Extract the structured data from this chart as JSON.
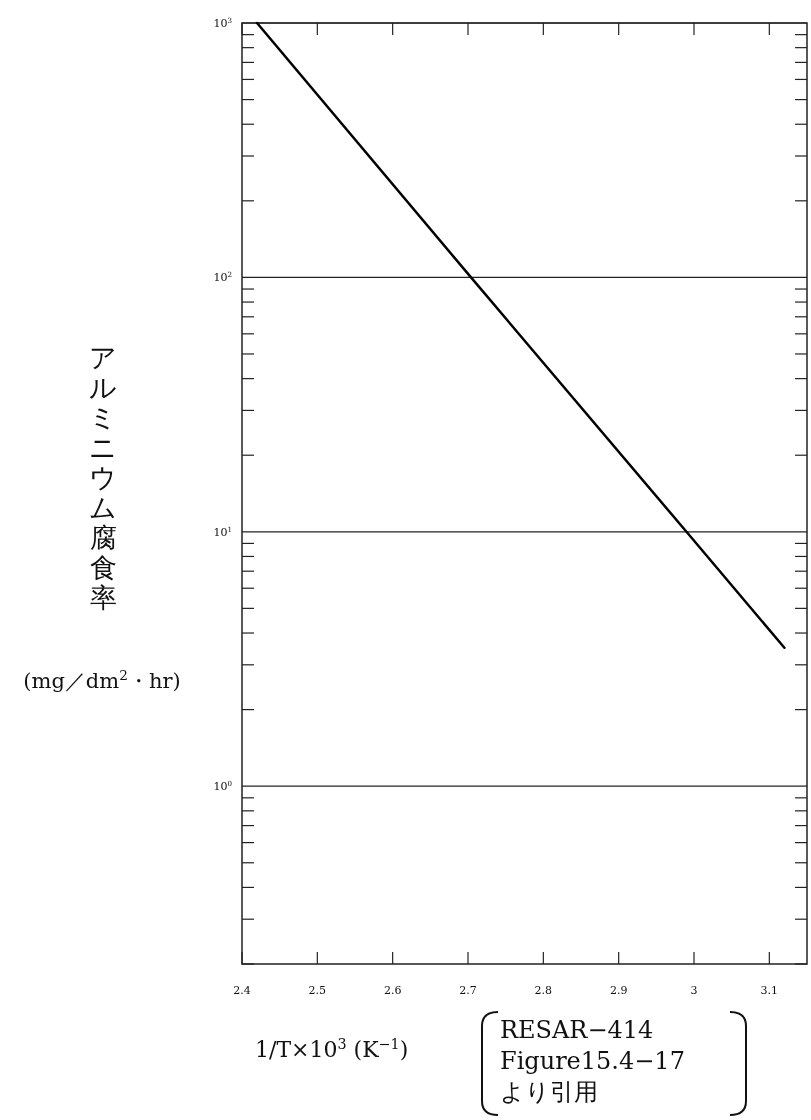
{
  "chart_data": {
    "type": "line",
    "log": "y",
    "grid": "y",
    "xlabel": "1/T×10$^{3}$   (K$^{−1}$)",
    "ylabel": "アルミニウム腐食率 (mg／dm$^{2}$・hr)",
    "xlim": [
      2.4,
      3.15
    ],
    "xticks": [
      {
        "value": 2.4,
        "label": "2.4"
      },
      2.5,
      2.6,
      2.7,
      2.8,
      2.9,
      3,
      3.1
    ],
    "ylim": [
      0.2,
      1000
    ],
    "yticks": [
      {
        "value": 1,
        "label": "10$^{0}$"
      },
      {
        "value": 10,
        "label": "10$^{1}$"
      },
      {
        "value": 100,
        "label": "10$^{2}$"
      },
      {
        "value": 1000,
        "label": "10$^{3}$"
      }
    ],
    "series": [
      {
        "color": "#000000",
        "x": [
          2.42,
          2.704,
          2.99,
          3.12
        ],
        "values": [
          1000,
          100,
          10,
          3.5
        ]
      }
    ],
    "annotations": [
      "RESAR−414",
      "Figure15.4−17",
      "より引用"
    ]
  }
}
